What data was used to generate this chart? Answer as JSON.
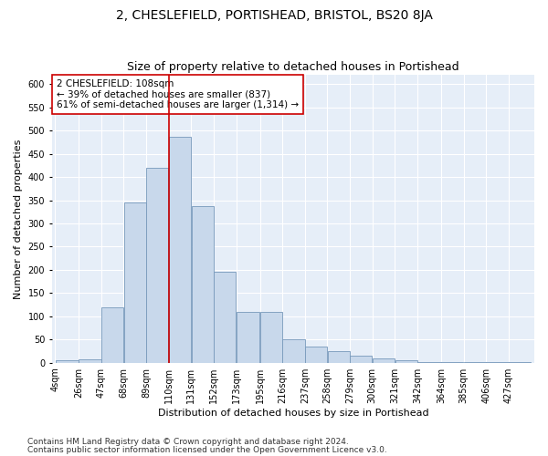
{
  "title": "2, CHESLEFIELD, PORTISHEAD, BRISTOL, BS20 8JA",
  "subtitle": "Size of property relative to detached houses in Portishead",
  "xlabel": "Distribution of detached houses by size in Portishead",
  "ylabel": "Number of detached properties",
  "bar_color": "#c8d8eb",
  "bar_edge_color": "#7799bb",
  "background_color": "#e6eef8",
  "grid_color": "#ffffff",
  "vline_color": "#cc0000",
  "vline_x": 110,
  "categories": [
    "4sqm",
    "26sqm",
    "47sqm",
    "68sqm",
    "89sqm",
    "110sqm",
    "131sqm",
    "152sqm",
    "173sqm",
    "195sqm",
    "216sqm",
    "237sqm",
    "258sqm",
    "279sqm",
    "300sqm",
    "321sqm",
    "342sqm",
    "364sqm",
    "385sqm",
    "406sqm",
    "427sqm"
  ],
  "bin_edges": [
    4,
    26,
    47,
    68,
    89,
    110,
    131,
    152,
    173,
    195,
    216,
    237,
    258,
    279,
    300,
    321,
    342,
    364,
    385,
    406,
    427,
    448
  ],
  "values": [
    5,
    7,
    120,
    345,
    420,
    487,
    338,
    195,
    110,
    110,
    50,
    35,
    25,
    16,
    10,
    5,
    2,
    1,
    1,
    1,
    2
  ],
  "ylim": [
    0,
    620
  ],
  "yticks": [
    0,
    50,
    100,
    150,
    200,
    250,
    300,
    350,
    400,
    450,
    500,
    550,
    600
  ],
  "annotation_title": "2 CHESLEFIELD: 108sqm",
  "annotation_line1": "← 39% of detached houses are smaller (837)",
  "annotation_line2": "61% of semi-detached houses are larger (1,314) →",
  "annotation_box_color": "#ffffff",
  "annotation_box_edge": "#cc0000",
  "footnote1": "Contains HM Land Registry data © Crown copyright and database right 2024.",
  "footnote2": "Contains public sector information licensed under the Open Government Licence v3.0.",
  "title_fontsize": 10,
  "subtitle_fontsize": 9,
  "axis_label_fontsize": 8,
  "tick_fontsize": 7,
  "annotation_fontsize": 7.5,
  "footnote_fontsize": 6.5
}
